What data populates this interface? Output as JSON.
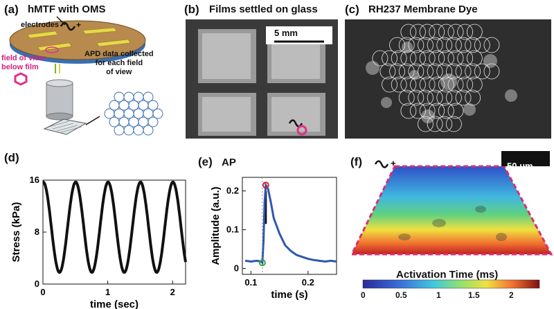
{
  "panels": {
    "a": {
      "label": "(a)",
      "title": "hMTF with OMS",
      "electrodes": "electrodes",
      "field_of_view": "field of view\nbelow film",
      "apd": "APD data collected\nfor each field\nof view"
    },
    "b": {
      "label": "(b)",
      "title": "Films settled on glass",
      "scale": "5 mm"
    },
    "c": {
      "label": "(c)",
      "title": "RH237 Membrane Dye"
    },
    "d": {
      "label": "(d)"
    },
    "e": {
      "label": "(e)",
      "title": "AP"
    },
    "f": {
      "label": "(f)",
      "scale": "50 μm",
      "colorbar_title": "Activation Time (ms)",
      "colorbar_ticks": [
        "0",
        "0.5",
        "1",
        "1.5",
        "2"
      ]
    }
  },
  "chart_data": [
    {
      "type": "line",
      "panel": "d",
      "xlabel": "time (sec)",
      "ylabel": "Stress (kPa)",
      "xlim": [
        0,
        2.2
      ],
      "ylim": [
        0,
        16
      ],
      "xticks": [
        "0",
        "1",
        "2"
      ],
      "yticks": [
        "0",
        "8",
        "16"
      ],
      "series": [
        {
          "period": 0.5,
          "min": 1.8,
          "max": 15.7,
          "x": [
            0,
            0.25,
            0.5,
            0.75,
            1.0,
            1.25,
            1.5,
            1.75,
            2.0,
            2.2
          ],
          "y": [
            15.5,
            1.8,
            15.7,
            1.8,
            15.6,
            1.8,
            15.7,
            1.8,
            15.5,
            6.0
          ]
        }
      ],
      "color": "#111111"
    },
    {
      "type": "line",
      "panel": "e",
      "title": "AP",
      "xlabel": "time (s)",
      "ylabel": "Amplitude (a.u.)",
      "xlim": [
        0.085,
        0.25
      ],
      "ylim": [
        -0.015,
        0.235
      ],
      "xticks": [
        "0.1",
        "0.2"
      ],
      "yticks": [
        "0",
        "0.1",
        "0.2"
      ],
      "series": [
        {
          "x": [
            0.09,
            0.1,
            0.11,
            0.118,
            0.12,
            0.122,
            0.124,
            0.126,
            0.13,
            0.135,
            0.14,
            0.15,
            0.16,
            0.17,
            0.18,
            0.19,
            0.2,
            0.21,
            0.22,
            0.23,
            0.24,
            0.25
          ],
          "y": [
            0.02,
            0.018,
            0.02,
            0.018,
            0.015,
            0.07,
            0.17,
            0.215,
            0.205,
            0.17,
            0.13,
            0.09,
            0.06,
            0.045,
            0.035,
            0.03,
            0.025,
            0.022,
            0.02,
            0.018,
            0.02,
            0.018
          ]
        }
      ],
      "color": "#2f56b0",
      "markers": [
        {
          "x": 0.126,
          "y": 0.215,
          "color": "#e0202a"
        },
        {
          "x": 0.12,
          "y": 0.015,
          "color": "#3aa34a"
        }
      ]
    }
  ]
}
